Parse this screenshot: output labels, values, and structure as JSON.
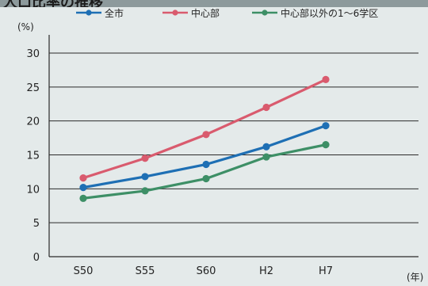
{
  "page_title": "人口比率の推移",
  "chart_data": {
    "type": "line",
    "categories": [
      "S50",
      "S55",
      "S60",
      "H2",
      "H7"
    ],
    "series": [
      {
        "name": "全市",
        "color": "#1e6fb4",
        "values": [
          10.2,
          11.8,
          13.6,
          16.2,
          19.3
        ]
      },
      {
        "name": "中心部",
        "color": "#d95b6e",
        "values": [
          11.6,
          14.5,
          18.0,
          22.0,
          26.1
        ]
      },
      {
        "name": "中心部以外の1〜6学区",
        "color": "#3d8f66",
        "values": [
          8.6,
          9.7,
          11.5,
          14.7,
          16.5
        ]
      }
    ],
    "ylabel": "(%)",
    "xlabel": "(年)",
    "ylim": [
      0,
      30
    ],
    "yticks": [
      0,
      5,
      10,
      15,
      20,
      25,
      30
    ],
    "grid": true,
    "legend_position": "top"
  }
}
